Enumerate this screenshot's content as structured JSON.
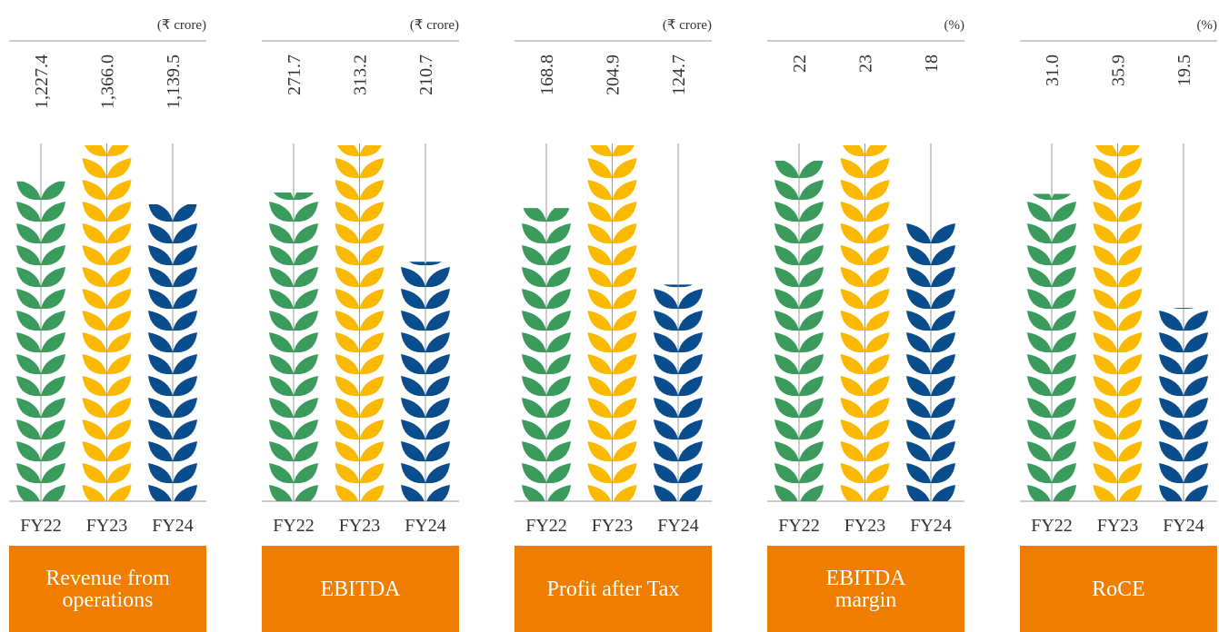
{
  "chart_data": [
    {
      "type": "pictogram-bar",
      "title": "Revenue from operations",
      "unit": "(₹ crore)",
      "categories": [
        "FY22",
        "FY23",
        "FY24"
      ],
      "values": [
        1227.4,
        1366.0,
        1139.5
      ],
      "value_labels": [
        "1,227.4",
        "1,366.0",
        "1,139.5"
      ],
      "colors": [
        "#3a9b5c",
        "#fbb900",
        "#0a4d8c"
      ]
    },
    {
      "type": "pictogram-bar",
      "title": "EBITDA",
      "unit": "(₹ crore)",
      "categories": [
        "FY22",
        "FY23",
        "FY24"
      ],
      "values": [
        271.7,
        313.2,
        210.7
      ],
      "colors": [
        "#3a9b5c",
        "#fbb900",
        "#0a4d8c"
      ]
    },
    {
      "type": "pictogram-bar",
      "title": "Profit after Tax",
      "unit": "(₹ crore)",
      "categories": [
        "FY22",
        "FY23",
        "FY24"
      ],
      "values": [
        168.8,
        204.9,
        124.7
      ],
      "colors": [
        "#3a9b5c",
        "#fbb900",
        "#0a4d8c"
      ]
    },
    {
      "type": "pictogram-bar",
      "title": "EBITDA margin",
      "unit": "(%)",
      "categories": [
        "FY22",
        "FY23",
        "FY24"
      ],
      "values": [
        22,
        23,
        18
      ],
      "colors": [
        "#3a9b5c",
        "#fbb900",
        "#0a4d8c"
      ]
    },
    {
      "type": "pictogram-bar",
      "title": "RoCE",
      "unit": "(%)",
      "categories": [
        "FY22",
        "FY23",
        "FY24"
      ],
      "values": [
        31.0,
        35.9,
        19.5
      ],
      "value_labels": [
        "31.0",
        "35.9",
        "19.5"
      ],
      "colors": [
        "#3a9b5c",
        "#fbb900",
        "#0a4d8c"
      ]
    }
  ]
}
